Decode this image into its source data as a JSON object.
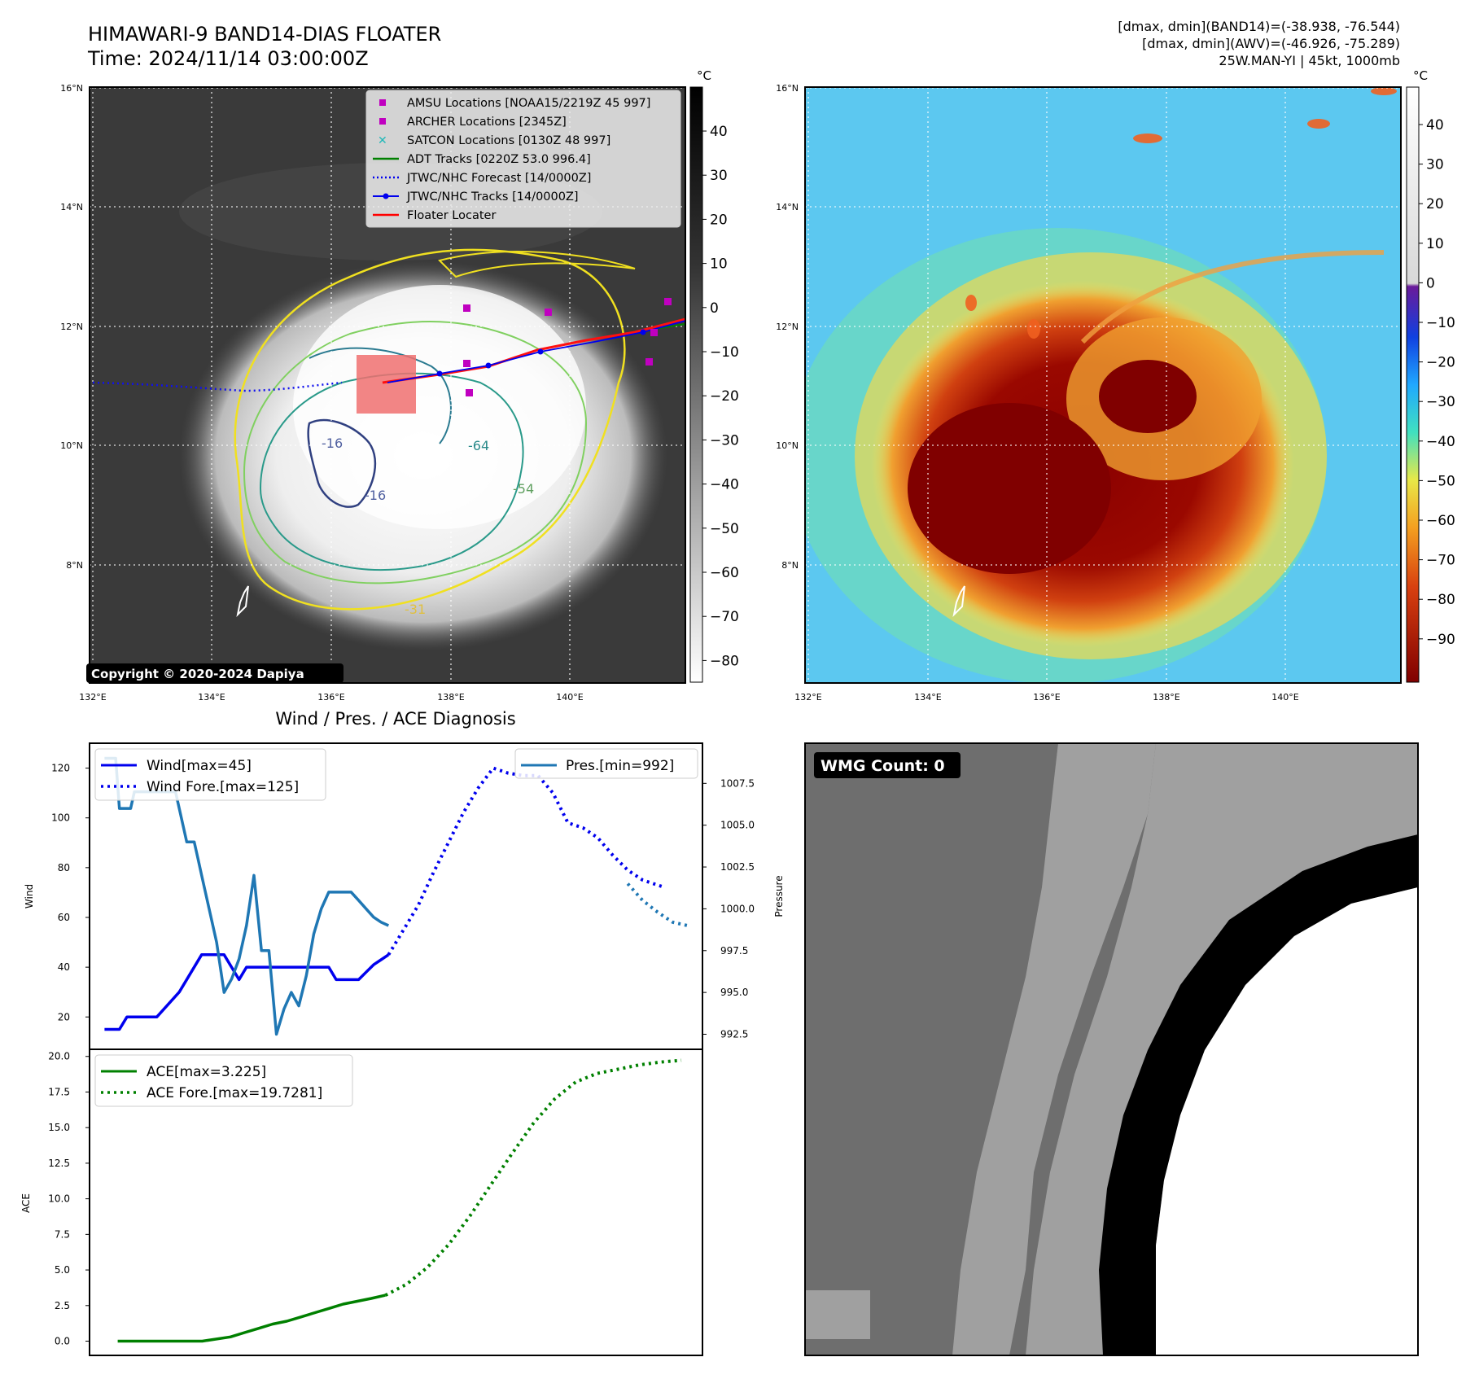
{
  "header": {
    "title_line1": "HIMAWARI-9 BAND14-DIAS FLOATER",
    "title_line2": "Time: 2024/11/14 03:00:00Z",
    "info_line1": "[dmax, dmin](BAND14)=(-38.938, -76.544)",
    "info_line2": "[dmax, dmin](AWV)=(-46.926, -75.289)",
    "info_line3": "25W.MAN-YI | 45kt, 1000mb"
  },
  "map": {
    "lat_labels": [
      "16°N",
      "14°N",
      "12°N",
      "10°N",
      "8°N"
    ],
    "lon_labels": [
      "132°E",
      "134°E",
      "136°E",
      "138°E",
      "140°E"
    ],
    "copyright": "Copyright © 2020-2024 Dapiya",
    "contour_labels": [
      "-16",
      "-16",
      "-64",
      "-54",
      "-31"
    ],
    "legend": [
      {
        "label": "AMSU Locations [NOAA15/2219Z 45 997]",
        "color": "#c000c0",
        "marker": "square"
      },
      {
        "label": "ARCHER Locations [2345Z]",
        "color": "#c000c0",
        "marker": "square"
      },
      {
        "label": "SATCON Locations [0130Z 48 997]",
        "color": "#20b8b8",
        "marker": "x"
      },
      {
        "label": "ADT Tracks [0220Z 53.0 996.4]",
        "color": "#008000",
        "marker": "line"
      },
      {
        "label": "JTWC/NHC Forecast [14/0000Z]",
        "color": "#0000ff",
        "marker": "dotted"
      },
      {
        "label": "JTWC/NHC Tracks [14/0000Z]",
        "color": "#0000ff",
        "marker": "line-dot"
      },
      {
        "label": "Floater Locater",
        "color": "#ff0000",
        "marker": "line"
      }
    ]
  },
  "colorbar_gray": {
    "unit": "°C",
    "ticks": [
      "40",
      "30",
      "20",
      "10",
      "0",
      "−10",
      "−20",
      "−30",
      "−40",
      "−50",
      "−60",
      "−70",
      "−80"
    ]
  },
  "colorbar_color": {
    "unit": "°C",
    "ticks": [
      "40",
      "30",
      "20",
      "10",
      "0",
      "−10",
      "−20",
      "−30",
      "−40",
      "−50",
      "−60",
      "−70",
      "−80",
      "−90"
    ]
  },
  "wmg": {
    "label": "WMG Count: 0"
  },
  "chart_data": [
    {
      "type": "line",
      "title": "Wind / Pres. / ACE Diagnosis",
      "ylabel": "Wind",
      "ylabel_right": "Pressure",
      "ylim": [
        7,
        130
      ],
      "ylim_right": [
        991.6,
        1009.9
      ],
      "yticks": [
        20,
        40,
        60,
        80,
        100,
        120
      ],
      "yticks_right": [
        992.5,
        995.0,
        997.5,
        1000.0,
        1002.5,
        1005.0,
        1007.5
      ],
      "legend_left": [
        "Wind[max=45]",
        "Wind Fore.[max=125]"
      ],
      "legend_right": [
        "Pres.[min=992]"
      ],
      "series": [
        {
          "name": "Wind",
          "axis": "left",
          "style": "solid",
          "color": "#0000ee",
          "x": [
            0,
            2,
            3,
            7,
            10,
            13,
            15,
            16,
            17,
            18,
            19,
            20,
            21,
            22,
            23,
            24,
            25,
            26,
            27,
            28,
            29,
            30,
            31,
            32,
            33,
            34,
            35,
            36,
            37,
            38
          ],
          "values": [
            15,
            15,
            20,
            20,
            30,
            45,
            45,
            45,
            40,
            35,
            40,
            40,
            40,
            40,
            40,
            40,
            40,
            40,
            40,
            40,
            40,
            40,
            35,
            35,
            35,
            35,
            38,
            41,
            43,
            45
          ]
        },
        {
          "name": "Pres.",
          "axis": "right",
          "style": "solid",
          "color": "#1f77b4",
          "x": [
            0,
            1,
            1.5,
            2,
            2.5,
            3,
            3.5,
            4,
            5,
            6,
            7,
            8,
            9,
            9.5,
            10,
            11,
            12,
            12.5,
            13,
            14,
            15,
            16,
            17,
            18,
            19,
            20,
            21,
            22,
            22.5,
            23,
            24,
            25,
            26,
            27,
            28,
            29,
            30,
            31,
            32,
            33,
            34,
            35,
            36,
            37,
            38
          ],
          "values": [
            1009.0,
            1009.0,
            1009.0,
            1006.0,
            1006.0,
            1006.0,
            1006.0,
            1007.0,
            1007.0,
            1007.0,
            1007.0,
            1007.0,
            1007.0,
            1007.0,
            1006.0,
            1004.0,
            1004.0,
            1003.0,
            1002.0,
            1000.0,
            998.0,
            995.0,
            995.8,
            997.0,
            999.0,
            1002.0,
            997.5,
            997.5,
            995.0,
            992.5,
            994.0,
            995.0,
            994.2,
            996.0,
            998.5,
            1000.0,
            1001.0,
            1001.0,
            1001.0,
            1001.0,
            1000.5,
            1000.0,
            999.5,
            999.2,
            999.0
          ]
        },
        {
          "name": "Wind Fore.",
          "axis": "left",
          "style": "dotted",
          "color": "#0000ee",
          "x": [
            38,
            40,
            42,
            44,
            46,
            48,
            50,
            52,
            54,
            56,
            58,
            60,
            62,
            64,
            66,
            68,
            70,
            72,
            74,
            75
          ],
          "values": [
            45,
            55,
            65,
            78,
            90,
            102,
            112,
            120,
            118,
            117,
            117,
            110,
            98,
            96,
            92,
            85,
            79,
            75,
            73,
            72
          ]
        },
        {
          "name": "Pres. Fore.",
          "axis": "right",
          "style": "dotted",
          "color": "#1f77b4",
          "x": [
            70,
            72,
            74,
            76,
            78
          ],
          "values": [
            1001.5,
            1000.5,
            999.8,
            999.2,
            999.0
          ]
        }
      ],
      "xlim": [
        -2,
        80
      ]
    },
    {
      "type": "line",
      "ylabel": "ACE",
      "ylim": [
        -1,
        20.5
      ],
      "yticks": [
        0.0,
        2.5,
        5.0,
        7.5,
        10.0,
        12.5,
        15.0,
        17.5,
        20.0
      ],
      "legend": [
        "ACE[max=3.225]",
        "ACE Fore.[max=19.7281]"
      ],
      "series": [
        {
          "name": "ACE",
          "style": "solid",
          "color": "#008000",
          "x": [
            0,
            4,
            8,
            12,
            16,
            18,
            20,
            22,
            24,
            26,
            28,
            30,
            32,
            34,
            36,
            38
          ],
          "values": [
            0,
            0,
            0,
            0,
            0.3,
            0.6,
            0.9,
            1.2,
            1.4,
            1.7,
            2.0,
            2.3,
            2.6,
            2.8,
            3.0,
            3.225
          ]
        },
        {
          "name": "ACE Fore.",
          "style": "dotted",
          "color": "#008000",
          "x": [
            38,
            41,
            44,
            47,
            50,
            53,
            56,
            59,
            62,
            65,
            68,
            71,
            74,
            77,
            80
          ],
          "values": [
            3.225,
            4.0,
            5.2,
            6.8,
            8.8,
            11.0,
            13.2,
            15.3,
            17.0,
            18.2,
            18.8,
            19.1,
            19.4,
            19.6,
            19.7281
          ]
        }
      ],
      "xlim": [
        -4,
        83
      ]
    }
  ]
}
